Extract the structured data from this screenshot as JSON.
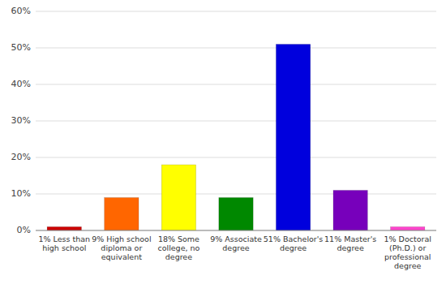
{
  "chart_data": {
    "type": "bar",
    "categories": [
      "1% Less than\nhigh school",
      "9% High school\ndiploma or\nequivalent",
      "18% Some\ncollege, no\ndegree",
      "9% Associate\ndegree",
      "51% Bachelor's\ndegree",
      "11% Master's\ndegree",
      "1% Doctoral\n(Ph.D.) or\nprofessional\ndegree"
    ],
    "values": [
      1,
      9,
      18,
      9,
      51,
      11,
      1
    ],
    "colors": [
      "#cc0000",
      "#ff6600",
      "#ffff00",
      "#008800",
      "#0000dd",
      "#7700bb",
      "#ff44cc"
    ],
    "ylim": [
      0,
      60
    ],
    "yticks": [
      {
        "value": 0,
        "label": "0%"
      },
      {
        "value": 10,
        "label": "10%"
      },
      {
        "value": 20,
        "label": "20%"
      },
      {
        "value": 30,
        "label": "30%"
      },
      {
        "value": 40,
        "label": "40%"
      },
      {
        "value": 50,
        "label": "50%"
      },
      {
        "value": 60,
        "label": "60%"
      }
    ],
    "grid": true
  }
}
